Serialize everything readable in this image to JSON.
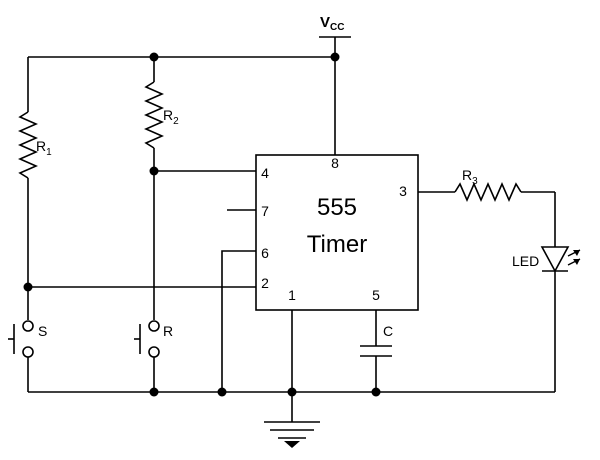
{
  "supply": {
    "label": "V",
    "subscript": "CC"
  },
  "ic": {
    "line1": "555",
    "line2": "Timer"
  },
  "pins": {
    "p1": "1",
    "p2": "2",
    "p3": "3",
    "p4": "4",
    "p5": "5",
    "p6": "6",
    "p7": "7",
    "p8": "8"
  },
  "components": {
    "r1": {
      "label": "R",
      "subscript": "1"
    },
    "r2": {
      "label": "R",
      "subscript": "2"
    },
    "r3": {
      "label": "R",
      "subscript": "3"
    },
    "c": "C",
    "led": "LED",
    "switch_s": "S",
    "switch_r": "R"
  }
}
